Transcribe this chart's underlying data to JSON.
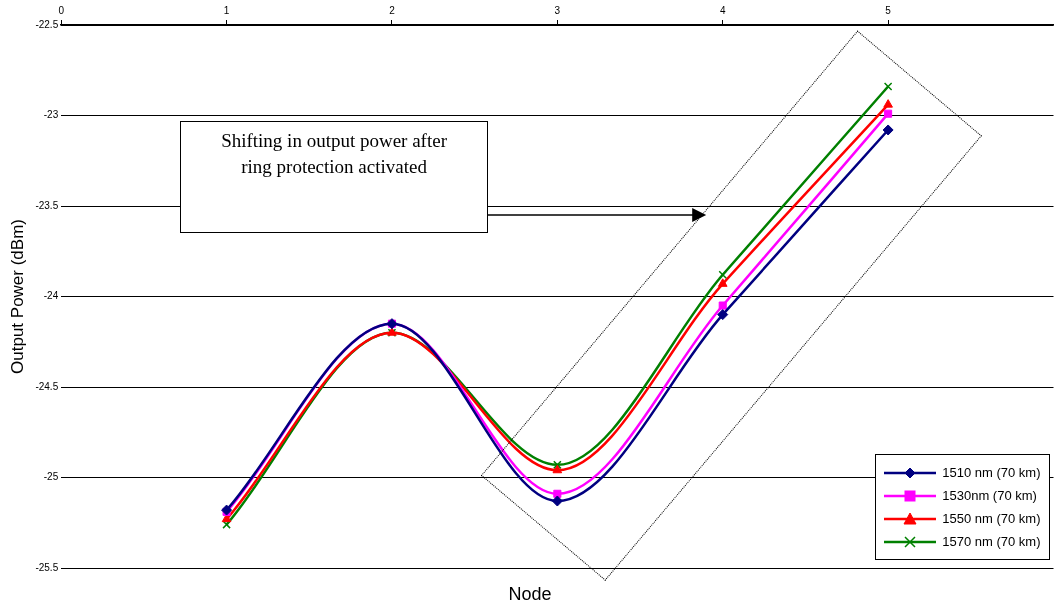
{
  "chart_data": {
    "type": "line",
    "xlabel": "Node",
    "ylabel": "Output Power (dBm)",
    "x": [
      1,
      2,
      3,
      4,
      5
    ],
    "series": [
      {
        "name": "1510 nm (70 km)",
        "color": "#000080",
        "marker": "diamond",
        "values": [
          -25.18,
          -24.15,
          -25.13,
          -24.1,
          -23.08
        ]
      },
      {
        "name": "1530nm (70 km)",
        "color": "#ff00ff",
        "marker": "square",
        "values": [
          -25.19,
          -24.15,
          -25.09,
          -24.05,
          -22.99
        ]
      },
      {
        "name": "1550 nm (70 km)",
        "color": "#ff0000",
        "marker": "triangle",
        "values": [
          -25.23,
          -24.2,
          -24.96,
          -23.93,
          -22.94
        ]
      },
      {
        "name": "1570 nm (70 km)",
        "color": "#008000",
        "marker": "cross",
        "values": [
          -25.26,
          -24.2,
          -24.93,
          -23.88,
          -22.84
        ]
      }
    ],
    "xlim": [
      0,
      6
    ],
    "xticks": [
      0,
      1,
      2,
      3,
      4,
      5
    ],
    "ylim": [
      -25.5,
      -22.5
    ],
    "yticks": [
      -25.5,
      -25,
      -24.5,
      -24,
      -23.5,
      -23,
      -22.5
    ],
    "grid": "y",
    "legend": "bottom right",
    "line_style": "solid",
    "annotations": [
      "Shifting in output power after ring protection activated"
    ]
  }
}
